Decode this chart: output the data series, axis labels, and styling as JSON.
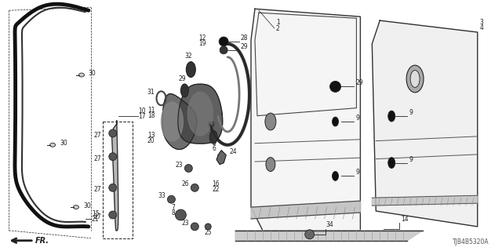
{
  "bg_color": "#ffffff",
  "diagram_code": "TJB4B5320A",
  "lc": "#222222"
}
